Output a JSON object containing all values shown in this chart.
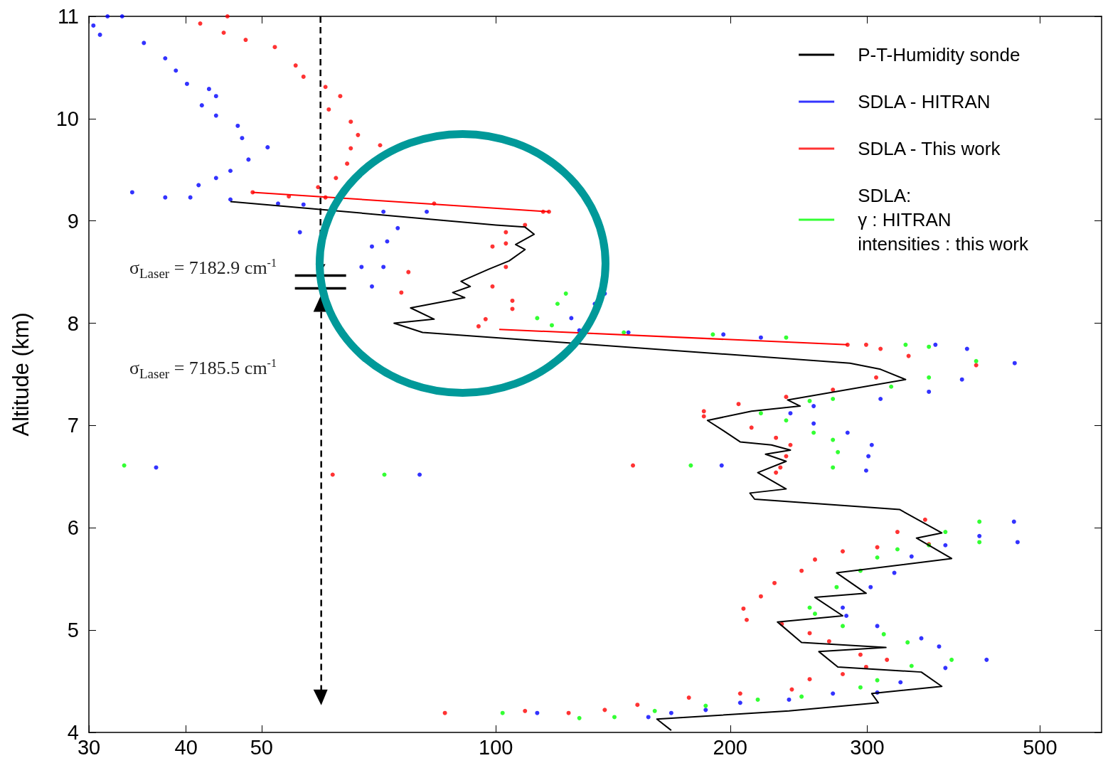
{
  "chart_data": {
    "type": "scatter",
    "ylabel": "Altitude (km)",
    "log": "x",
    "xlim": [
      30,
      600
    ],
    "xticks": [
      30,
      40,
      50,
      100,
      200,
      300,
      500
    ],
    "ylim": [
      4,
      11
    ],
    "yticks": [
      4,
      5,
      6,
      7,
      8,
      9,
      10,
      11
    ],
    "grid": false,
    "legend": "top right",
    "marker": "circle",
    "annotations": [
      "σ$_{Laser}$  = 7182.9 cm$^{-1}$",
      "σ$_{Laser}$  = 7185.5 cm$^{-1}$"
    ],
    "series": [
      {
        "name": "P-T-Humidity sonde",
        "type": "line",
        "marker": "none",
        "color": "#000000",
        "x": [
          45.6,
          100,
          109,
          112,
          106,
          109,
          104,
          98,
          90.2,
          92.7,
          88,
          91.2,
          77.7,
          83.3,
          74,
          80.5,
          285,
          312,
          336,
          237,
          246,
          213,
          187,
          196,
          206,
          226,
          239,
          222,
          236,
          217,
          236,
          212,
          215,
          330,
          374,
          347,
          385,
          274,
          299,
          257,
          279,
          230,
          247,
          317,
          260,
          275,
          352,
          374,
          304,
          310,
          238,
          161,
          168
        ],
        "values": [
          9.19,
          8.96,
          8.94,
          8.87,
          8.77,
          8.72,
          8.61,
          8.53,
          8.41,
          8.36,
          8.3,
          8.25,
          8.15,
          8.04,
          8.0,
          7.91,
          7.61,
          7.55,
          7.45,
          7.25,
          7.19,
          7.14,
          7.05,
          6.95,
          6.84,
          6.81,
          6.76,
          6.72,
          6.65,
          6.54,
          6.38,
          6.34,
          6.28,
          6.18,
          5.95,
          5.9,
          5.7,
          5.56,
          5.36,
          5.32,
          5.14,
          5.08,
          4.88,
          4.83,
          4.79,
          4.64,
          4.59,
          4.45,
          4.38,
          4.29,
          4.21,
          4.13,
          4.02
        ]
      },
      {
        "name": "SDLA - HITRAN",
        "color": "#0000ff",
        "x": [
          30.4,
          31.7,
          33.1,
          31,
          35.3,
          37.6,
          38.8,
          40.1,
          42.8,
          43.7,
          41.9,
          43.7,
          46.6,
          47.2,
          50.9,
          48.1,
          45.6,
          43.7,
          41.5,
          34.1,
          37.6,
          40.5,
          45.6,
          52.5,
          56.6,
          56,
          71.7,
          81.5,
          74.8,
          72.5,
          69.3,
          71.7,
          67.2,
          69.3,
          125,
          134,
          138,
          128,
          148,
          196,
          219,
          367,
          403,
          464,
          397,
          360,
          312,
          256,
          239,
          256,
          283,
          304,
          301,
          299,
          195,
          36.6,
          79.8,
          463,
          468,
          418,
          378,
          342,
          325,
          303,
          279,
          282,
          309,
          352,
          371,
          427,
          378,
          331,
          309,
          271,
          238,
          206,
          186,
          168,
          157,
          113
        ],
        "values": [
          10.91,
          11.0,
          11.0,
          10.82,
          10.74,
          10.59,
          10.47,
          10.34,
          10.29,
          10.22,
          10.13,
          10.03,
          9.93,
          9.81,
          9.72,
          9.6,
          9.49,
          9.42,
          9.35,
          9.28,
          9.23,
          9.23,
          9.21,
          9.17,
          9.16,
          8.89,
          9.09,
          9.09,
          8.93,
          8.8,
          8.75,
          8.55,
          8.55,
          8.36,
          8.05,
          8.19,
          8.29,
          7.93,
          7.91,
          7.89,
          7.86,
          7.79,
          7.75,
          7.61,
          7.45,
          7.33,
          7.26,
          7.19,
          7.12,
          7.02,
          6.93,
          6.81,
          6.7,
          6.56,
          6.61,
          6.59,
          6.52,
          6.06,
          5.86,
          5.92,
          5.83,
          5.72,
          5.56,
          5.42,
          5.22,
          5.14,
          5.04,
          4.92,
          4.84,
          4.71,
          4.63,
          4.49,
          4.39,
          4.38,
          4.32,
          4.29,
          4.22,
          4.19,
          4.15,
          4.19
        ]
      },
      {
        "name": "SDLA - This work",
        "color": "#ff0000",
        "x": [
          41.7,
          45.2,
          44.7,
          47.7,
          52,
          55.3,
          56.6,
          60.4,
          63.1,
          61,
          65.1,
          66.5,
          65.1,
          71,
          64.4,
          62.3,
          59.1,
          48.7,
          54.2,
          60.4,
          83.3,
          115,
          117,
          109,
          103,
          103,
          99,
          103,
          99,
          105,
          105,
          97,
          95,
          75.6,
          77.2,
          283,
          299,
          312,
          339,
          414,
          308,
          271,
          236,
          205,
          185,
          185,
          213,
          229,
          239,
          236,
          232,
          229,
          150,
          61.7,
          356,
          328,
          360,
          309,
          279,
          257,
          247,
          228,
          219,
          208,
          210,
          233,
          253,
          268,
          294,
          318,
          299,
          279,
          253,
          240,
          206,
          177,
          152,
          138,
          124,
          109,
          86
        ],
        "values": [
          10.93,
          11.0,
          10.84,
          10.77,
          10.7,
          10.52,
          10.41,
          10.31,
          10.22,
          10.09,
          9.97,
          9.84,
          9.71,
          9.74,
          9.56,
          9.42,
          9.33,
          9.28,
          9.24,
          9.23,
          9.17,
          9.09,
          9.09,
          8.96,
          8.89,
          8.78,
          8.75,
          8.55,
          8.36,
          8.22,
          8.14,
          8.04,
          7.97,
          8.3,
          8.5,
          7.79,
          7.79,
          7.75,
          7.68,
          7.59,
          7.47,
          7.35,
          7.28,
          7.21,
          7.14,
          7.09,
          6.98,
          6.88,
          6.81,
          6.7,
          6.59,
          6.54,
          6.61,
          6.52,
          6.08,
          5.96,
          5.84,
          5.81,
          5.77,
          5.69,
          5.58,
          5.46,
          5.33,
          5.21,
          5.1,
          5.06,
          4.97,
          4.89,
          4.76,
          4.71,
          4.64,
          4.57,
          4.52,
          4.42,
          4.38,
          4.34,
          4.27,
          4.22,
          4.19,
          4.21,
          4.19
        ]
      },
      {
        "name": "SDLA:\nγ : HITRAN\nintensities : this work",
        "color": "#00ff00",
        "x": [
          123,
          120,
          113,
          118,
          146,
          190,
          236,
          336,
          360,
          414,
          360,
          322,
          271,
          253,
          219,
          236,
          256,
          271,
          275,
          271,
          178,
          71.9,
          33.3,
          418,
          378,
          418,
          360,
          328,
          309,
          294,
          274,
          253,
          257,
          279,
          315,
          338,
          385,
          342,
          309,
          294,
          247,
          217,
          186,
          160,
          142,
          128,
          102
        ],
        "values": [
          8.29,
          8.19,
          8.05,
          7.98,
          7.91,
          7.89,
          7.86,
          7.79,
          7.77,
          7.63,
          7.47,
          7.38,
          7.26,
          7.24,
          7.12,
          7.05,
          6.93,
          6.86,
          6.74,
          6.59,
          6.61,
          6.52,
          6.61,
          6.06,
          5.96,
          5.86,
          5.83,
          5.79,
          5.71,
          5.58,
          5.42,
          5.22,
          5.16,
          5.04,
          4.96,
          4.88,
          4.71,
          4.65,
          4.51,
          4.44,
          4.35,
          4.32,
          4.26,
          4.21,
          4.15,
          4.14,
          4.19
        ]
      },
      {
        "type": "line",
        "marker": "none",
        "color": "#ff0000",
        "x": [
          48.7,
          117,
          null,
          101,
          283
        ],
        "values": [
          9.28,
          9.09,
          null,
          7.94,
          7.79
        ]
      }
    ]
  }
}
